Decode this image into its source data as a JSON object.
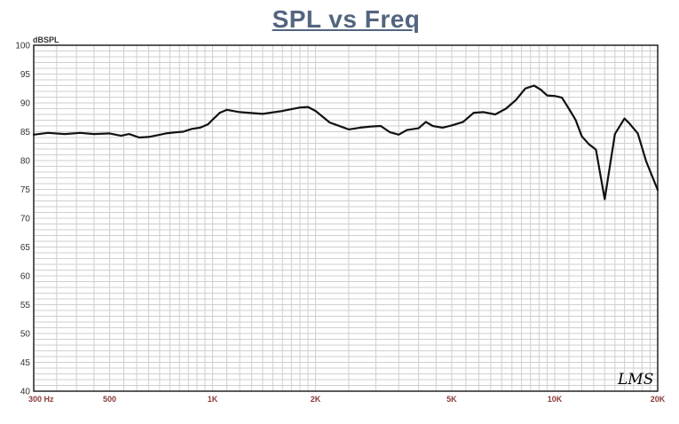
{
  "colors": {
    "title": "#53657f",
    "y_ticks": "#333333",
    "x_ticks": "#8b3a3a",
    "grid": "#cfcfcf",
    "frame": "#222222",
    "curve": "#111111"
  },
  "logo": {
    "text": "LMS"
  },
  "chart_data": {
    "type": "line",
    "title": "SPL vs Freq",
    "ylabel": "dBSPL",
    "xlabel": "",
    "x_scale": "log",
    "xlim": [
      300,
      20000
    ],
    "ylim": [
      40,
      100
    ],
    "grid": true,
    "y_ticks": [
      {
        "value": 40,
        "label": "40"
      },
      {
        "value": 45,
        "label": "45"
      },
      {
        "value": 50,
        "label": "50"
      },
      {
        "value": 55,
        "label": "55"
      },
      {
        "value": 60,
        "label": "60"
      },
      {
        "value": 65,
        "label": "65"
      },
      {
        "value": 70,
        "label": "70"
      },
      {
        "value": 75,
        "label": "75"
      },
      {
        "value": 80,
        "label": "80"
      },
      {
        "value": 85,
        "label": "85"
      },
      {
        "value": 90,
        "label": "90"
      },
      {
        "value": 95,
        "label": "95"
      },
      {
        "value": 100,
        "label": "100"
      }
    ],
    "x_ticks": [
      {
        "value": 300,
        "label": "300  Hz"
      },
      {
        "value": 500,
        "label": "500"
      },
      {
        "value": 1000,
        "label": "1K"
      },
      {
        "value": 2000,
        "label": "2K"
      },
      {
        "value": 5000,
        "label": "5K"
      },
      {
        "value": 10000,
        "label": "10K"
      },
      {
        "value": 20000,
        "label": "20K"
      }
    ],
    "x_grid": [
      300,
      400,
      500,
      600,
      700,
      800,
      900,
      1000,
      2000,
      3000,
      4000,
      5000,
      6000,
      7000,
      8000,
      9000,
      10000,
      20000
    ],
    "series": [
      {
        "x": [
          300,
          330,
          370,
          410,
          450,
          500,
          540,
          570,
          610,
          650,
          690,
          730,
          780,
          820,
          870,
          920,
          970,
          1000,
          1050,
          1100,
          1200,
          1400,
          1600,
          1700,
          1800,
          1900,
          2000,
          2200,
          2500,
          2700,
          2900,
          3100,
          3300,
          3500,
          3700,
          4000,
          4200,
          4400,
          4700,
          5000,
          5400,
          5800,
          6200,
          6700,
          7200,
          7700,
          8200,
          8700,
          9100,
          9500,
          10000,
          10500,
          11000,
          11500,
          12000,
          12600,
          13200,
          14000,
          15000,
          16000,
          16500,
          17500,
          18500,
          20000
        ],
        "y": [
          84.5,
          84.8,
          84.6,
          84.8,
          84.6,
          84.7,
          84.3,
          84.6,
          84.0,
          84.1,
          84.4,
          84.7,
          84.9,
          85.0,
          85.5,
          85.7,
          86.3,
          87.1,
          88.3,
          88.8,
          88.4,
          88.1,
          88.6,
          88.9,
          89.2,
          89.3,
          88.6,
          86.6,
          85.4,
          85.7,
          85.9,
          86.0,
          84.9,
          84.5,
          85.3,
          85.6,
          86.7,
          86.0,
          85.7,
          86.1,
          86.7,
          88.3,
          88.4,
          88.0,
          89.0,
          90.5,
          92.5,
          93.0,
          92.3,
          91.3,
          91.2,
          90.9,
          89.0,
          87.1,
          84.2,
          82.8,
          81.9,
          73.3,
          84.6,
          87.3,
          86.5,
          84.7,
          79.9,
          74.9
        ]
      }
    ]
  }
}
